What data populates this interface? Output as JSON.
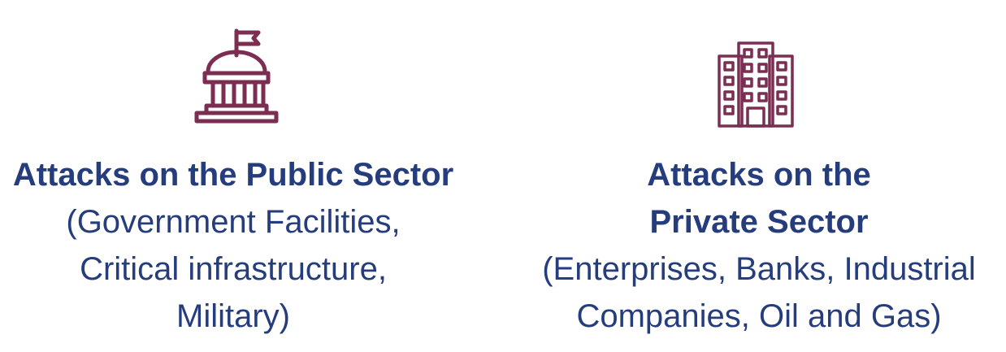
{
  "colors": {
    "icon": "#7b2d52",
    "text": "#253d7c",
    "background": "#ffffff"
  },
  "public_sector": {
    "icon": "government-building-icon",
    "title": "Attacks on the Public Sector",
    "description_lines": [
      "(Government Facilities,",
      "Critical infrastructure,",
      "Military)"
    ]
  },
  "private_sector": {
    "icon": "office-building-icon",
    "title_lines": [
      "Attacks on the",
      "Private Sector"
    ],
    "description_lines": [
      "(Enterprises, Banks, Industrial",
      "Companies, Oil and Gas)"
    ]
  }
}
